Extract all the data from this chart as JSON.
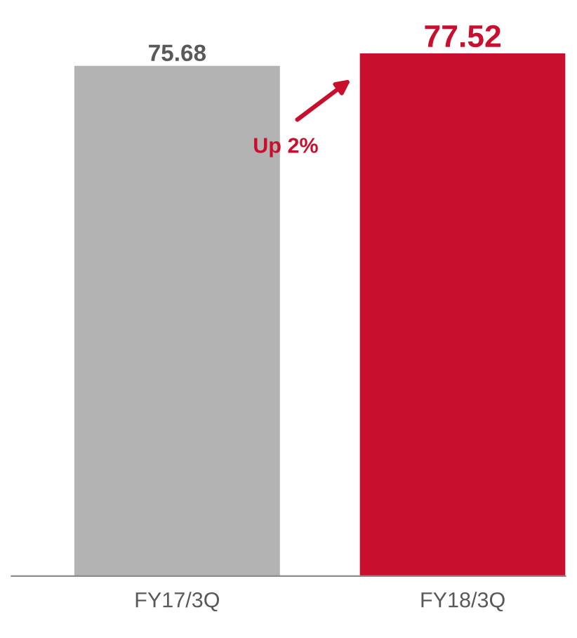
{
  "chart_data": {
    "type": "bar",
    "categories": [
      "FY17/3Q",
      "FY18/3Q"
    ],
    "values": [
      75.68,
      77.52
    ],
    "colors": [
      "#b3b3b3",
      "#c8102e"
    ],
    "data_labels": true,
    "annotations": [
      "Up 2%"
    ],
    "grid": false,
    "legend": false
  }
}
